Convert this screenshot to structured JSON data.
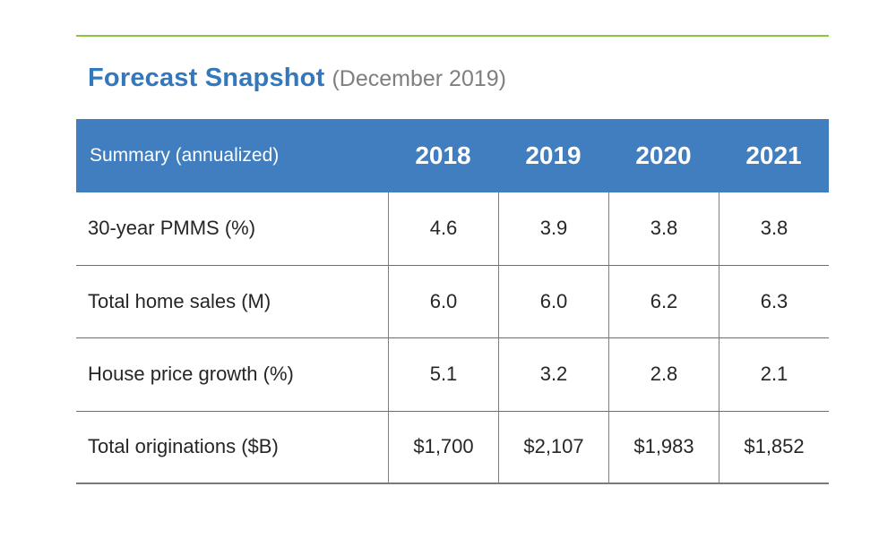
{
  "colors": {
    "accent_green": "#8DC63F",
    "header_blue": "#407EC0",
    "title_blue": "#3377BD",
    "subtitle_gray": "#7F7F7F",
    "body_text": "#262626"
  },
  "chart_data": {
    "type": "table",
    "title": "Forecast Snapshot",
    "subtitle": "(December 2019)",
    "corner_label": "Summary (annualized)",
    "categories": [
      "2018",
      "2019",
      "2020",
      "2021"
    ],
    "series": [
      {
        "name": "30-year PMMS (%)",
        "values": [
          "4.6",
          "3.9",
          "3.8",
          "3.8"
        ]
      },
      {
        "name": "Total home sales (M)",
        "values": [
          "6.0",
          "6.0",
          "6.2",
          "6.3"
        ]
      },
      {
        "name": "House price growth (%)",
        "values": [
          "5.1",
          "3.2",
          "2.8",
          "2.1"
        ]
      },
      {
        "name": "Total originations ($B)",
        "values": [
          "$1,700",
          "$2,107",
          "$1,983",
          "$1,852"
        ]
      }
    ]
  }
}
